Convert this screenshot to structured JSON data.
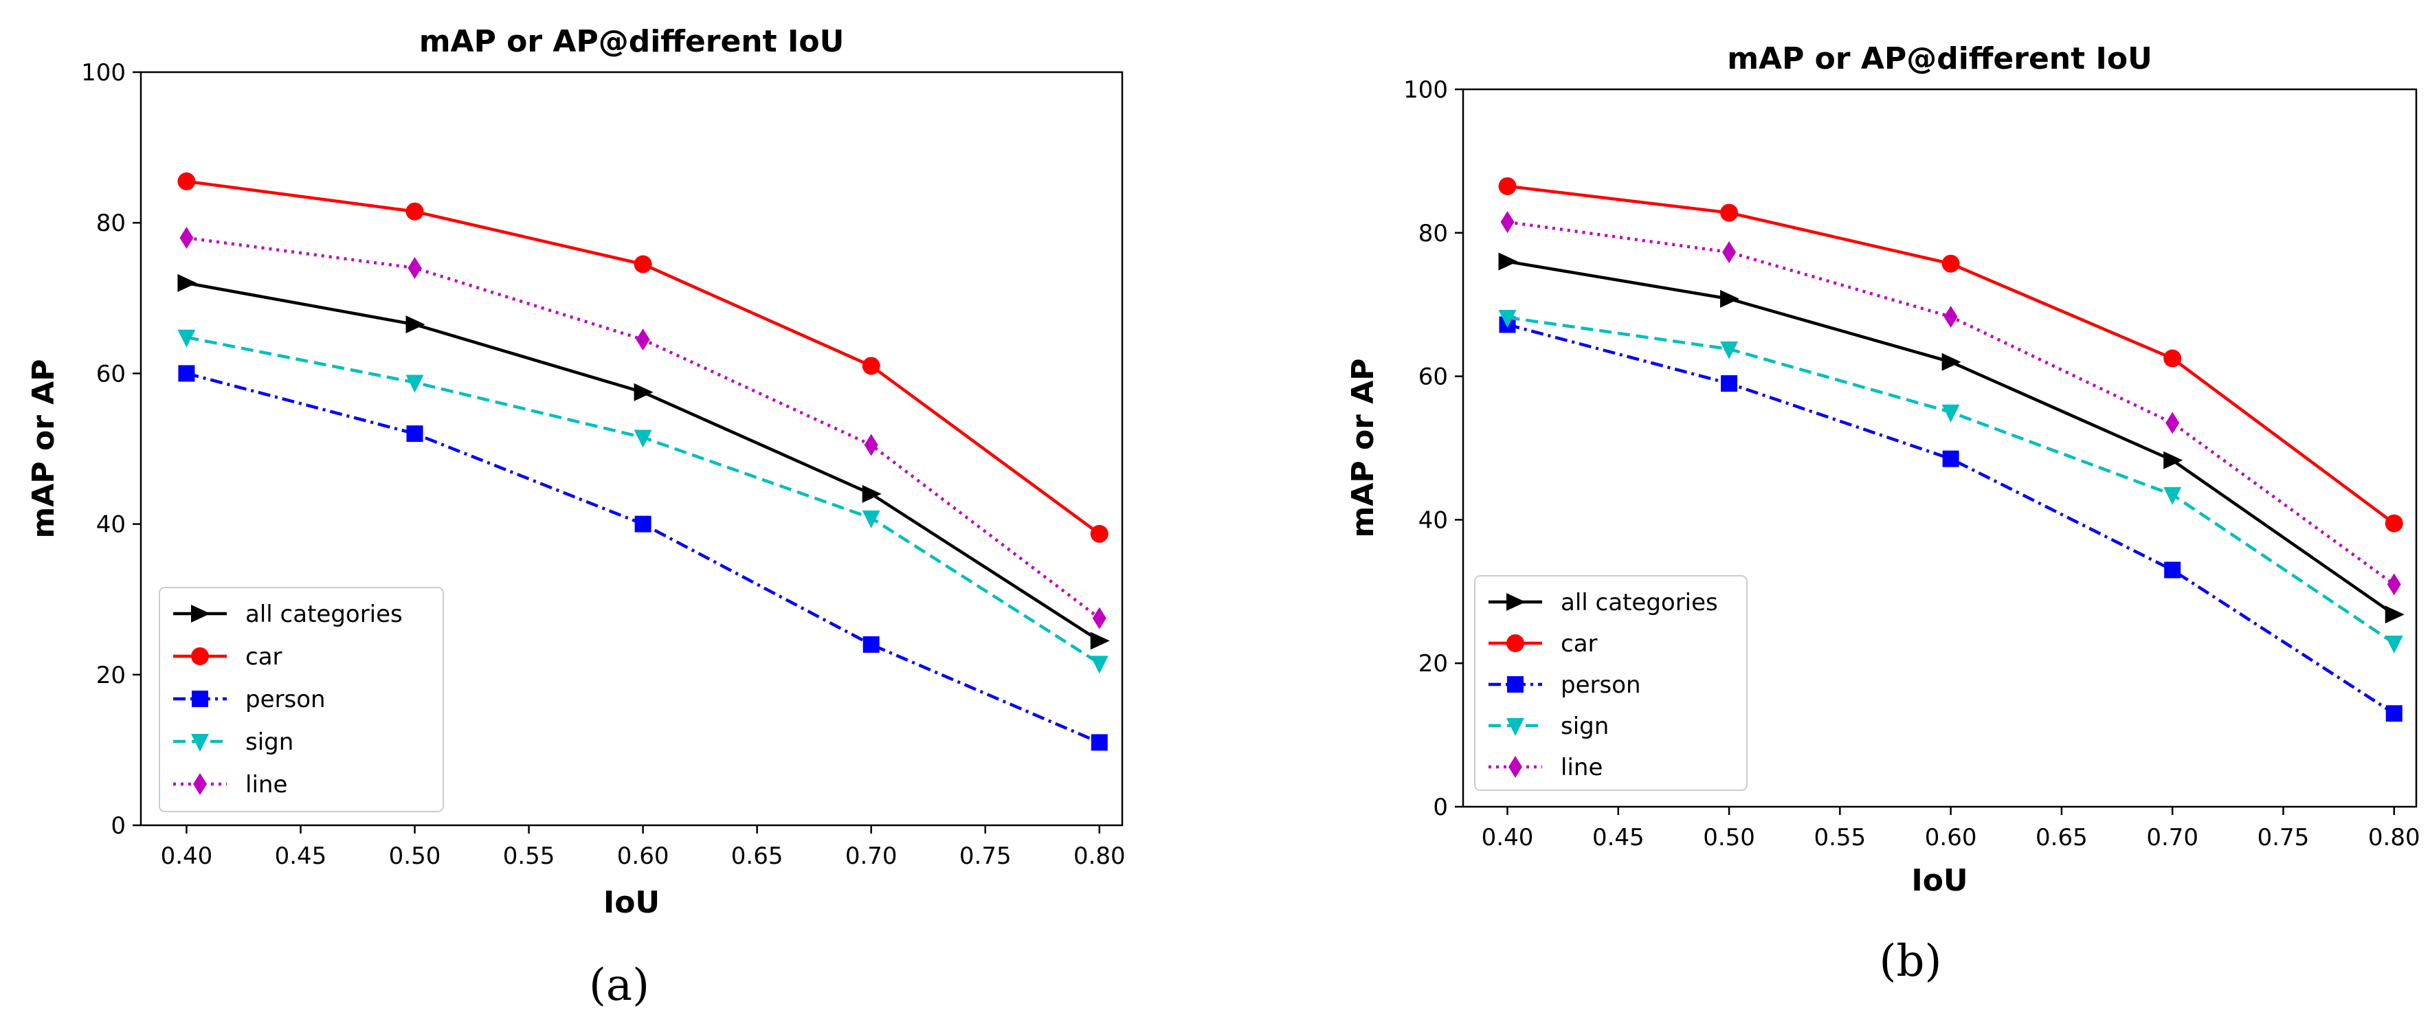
{
  "colors": {
    "all": "#000000",
    "car": "#ff0000",
    "person": "#0000ff",
    "sign": "#00bfbf",
    "line": "#bf00bf"
  },
  "chart_data": [
    {
      "type": "line",
      "caption": "(a)",
      "title": "mAP or AP@different IoU",
      "xlabel": "IoU",
      "ylabel": "mAP or AP",
      "xlim": [
        0.38,
        0.81
      ],
      "ylim": [
        0,
        100
      ],
      "xticks": [
        0.4,
        0.45,
        0.5,
        0.55,
        0.6,
        0.65,
        0.7,
        0.75,
        0.8
      ],
      "xtick_labels": [
        "0.40",
        "0.45",
        "0.50",
        "0.55",
        "0.60",
        "0.65",
        "0.70",
        "0.75",
        "0.80"
      ],
      "yticks": [
        0,
        20,
        40,
        60,
        80,
        100
      ],
      "ytick_labels": [
        "0",
        "20",
        "40",
        "60",
        "80",
        "100"
      ],
      "grid": false,
      "legend_position": "lower-left",
      "x": [
        0.4,
        0.5,
        0.6,
        0.7,
        0.8
      ],
      "series": [
        {
          "key": "all",
          "name": "all categories",
          "values": [
            72.0,
            66.5,
            57.5,
            44.0,
            24.5
          ],
          "marker": "triangle-right",
          "dash": "solid"
        },
        {
          "key": "car",
          "name": "car",
          "values": [
            85.5,
            81.5,
            74.5,
            61.0,
            38.7
          ],
          "marker": "circle",
          "dash": "solid"
        },
        {
          "key": "person",
          "name": "person",
          "values": [
            60.0,
            52.0,
            40.0,
            24.0,
            11.0
          ],
          "marker": "square",
          "dash": "dashdot"
        },
        {
          "key": "sign",
          "name": "sign",
          "values": [
            64.8,
            58.8,
            51.5,
            40.8,
            21.5
          ],
          "marker": "triangle-down",
          "dash": "dashed"
        },
        {
          "key": "line",
          "name": "line",
          "values": [
            78.0,
            74.0,
            64.5,
            50.5,
            27.5
          ],
          "marker": "diamond",
          "dash": "dotted"
        }
      ]
    },
    {
      "type": "line",
      "caption": "(b)",
      "title": "mAP or AP@different IoU",
      "xlabel": "IoU",
      "ylabel": "mAP or AP",
      "xlim": [
        0.38,
        0.81
      ],
      "ylim": [
        0,
        100
      ],
      "xticks": [
        0.4,
        0.45,
        0.5,
        0.55,
        0.6,
        0.65,
        0.7,
        0.75,
        0.8
      ],
      "xtick_labels": [
        "0.40",
        "0.45",
        "0.50",
        "0.55",
        "0.60",
        "0.65",
        "0.70",
        "0.75",
        "0.80"
      ],
      "yticks": [
        0,
        20,
        40,
        60,
        80,
        100
      ],
      "ytick_labels": [
        "0",
        "20",
        "40",
        "60",
        "80",
        "100"
      ],
      "grid": false,
      "legend_position": "lower-left",
      "x": [
        0.4,
        0.5,
        0.6,
        0.7,
        0.8
      ],
      "series": [
        {
          "key": "all",
          "name": "all categories",
          "values": [
            76.0,
            70.8,
            62.0,
            48.3,
            26.8
          ],
          "marker": "triangle-right",
          "dash": "solid"
        },
        {
          "key": "car",
          "name": "car",
          "values": [
            86.5,
            82.8,
            75.7,
            62.5,
            39.5
          ],
          "marker": "circle",
          "dash": "solid"
        },
        {
          "key": "person",
          "name": "person",
          "values": [
            67.2,
            59.0,
            48.5,
            33.0,
            13.0
          ],
          "marker": "square",
          "dash": "dashdot"
        },
        {
          "key": "sign",
          "name": "sign",
          "values": [
            68.2,
            63.8,
            55.0,
            43.5,
            22.8
          ],
          "marker": "triangle-down",
          "dash": "dashed"
        },
        {
          "key": "line",
          "name": "line",
          "values": [
            81.5,
            77.3,
            68.3,
            53.5,
            31.0
          ],
          "marker": "diamond",
          "dash": "dotted"
        }
      ]
    }
  ]
}
